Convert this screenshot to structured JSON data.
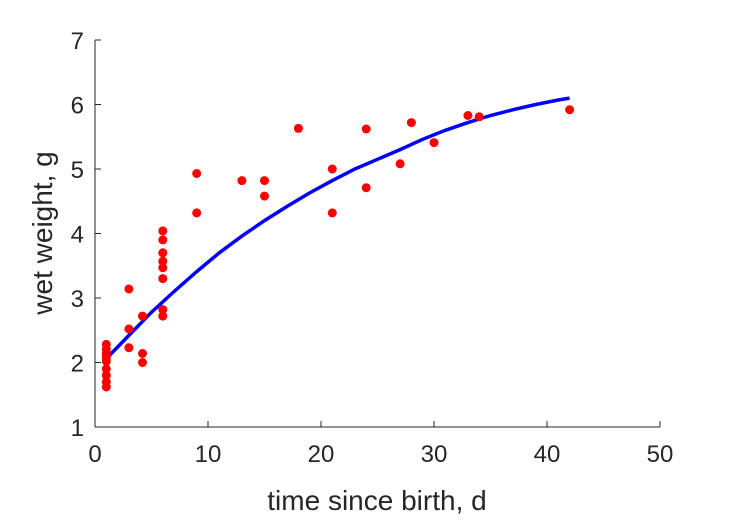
{
  "chart_data": {
    "type": "scatter",
    "xlabel": "time since birth, d",
    "ylabel": "wet weight, g",
    "xlim": [
      0,
      50
    ],
    "ylim": [
      1,
      7
    ],
    "x_ticks": [
      0,
      10,
      20,
      30,
      40,
      50
    ],
    "y_ticks": [
      1,
      2,
      3,
      4,
      5,
      6,
      7
    ],
    "grid": false,
    "legend": "none",
    "colors": {
      "points": "#ff0000",
      "fit": "#0000ff",
      "axis": "#262626"
    },
    "series": [
      {
        "kind": "scatter",
        "points": [
          [
            1,
            1.62
          ],
          [
            1,
            1.7
          ],
          [
            1,
            1.8
          ],
          [
            1,
            1.9
          ],
          [
            1,
            2.02
          ],
          [
            1,
            2.08
          ],
          [
            1,
            2.13
          ],
          [
            1,
            2.2
          ],
          [
            1,
            2.28
          ],
          [
            3,
            2.23
          ],
          [
            3,
            2.52
          ],
          [
            3,
            3.14
          ],
          [
            4.2,
            2.0
          ],
          [
            4.2,
            2.14
          ],
          [
            4.2,
            2.72
          ],
          [
            6,
            2.72
          ],
          [
            6,
            2.82
          ],
          [
            6,
            3.3
          ],
          [
            6,
            3.47
          ],
          [
            6,
            3.57
          ],
          [
            6,
            3.7
          ],
          [
            6,
            3.9
          ],
          [
            6,
            4.04
          ],
          [
            9,
            4.32
          ],
          [
            9,
            4.93
          ],
          [
            13,
            4.82
          ],
          [
            15,
            4.58
          ],
          [
            15,
            4.82
          ],
          [
            18,
            5.63
          ],
          [
            21,
            4.32
          ],
          [
            21,
            5.0
          ],
          [
            24,
            4.71
          ],
          [
            24,
            5.62
          ],
          [
            27,
            5.08
          ],
          [
            28,
            5.72
          ],
          [
            30,
            5.41
          ],
          [
            33,
            5.83
          ],
          [
            34,
            5.81
          ],
          [
            42,
            5.92
          ]
        ]
      },
      {
        "kind": "line",
        "points": [
          [
            1,
            2.06
          ],
          [
            3,
            2.42
          ],
          [
            5,
            2.78
          ],
          [
            7,
            3.1
          ],
          [
            9,
            3.41
          ],
          [
            11,
            3.7
          ],
          [
            13,
            3.96
          ],
          [
            15,
            4.2
          ],
          [
            17,
            4.42
          ],
          [
            19,
            4.63
          ],
          [
            21,
            4.82
          ],
          [
            23,
            5.0
          ],
          [
            25,
            5.15
          ],
          [
            27,
            5.3
          ],
          [
            29,
            5.46
          ],
          [
            31,
            5.6
          ],
          [
            33,
            5.72
          ],
          [
            35,
            5.83
          ],
          [
            37,
            5.92
          ],
          [
            39,
            6.0
          ],
          [
            41,
            6.07
          ],
          [
            42,
            6.1
          ]
        ]
      }
    ]
  }
}
